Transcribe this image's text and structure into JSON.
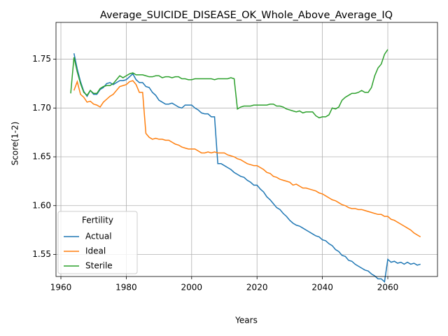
{
  "chart_data": {
    "type": "line",
    "title": "Average_SUICIDE_DISEASE_OK_Whole_Above_Average_IQ",
    "x_label": "Years",
    "y_label": "Score(1-2)",
    "legend_title": "Fertility",
    "legend_position": "lower left",
    "grid": true,
    "xlim": [
      1958.5,
      2075.2
    ],
    "ylim": [
      1.5274,
      1.7877
    ],
    "xticks": [
      1960,
      1980,
      2000,
      2020,
      2040,
      2060
    ],
    "yticks": [
      1.55,
      {
        "value": 1.6,
        "label": "1.60"
      },
      1.65,
      {
        "value": 1.7,
        "label": "1.70"
      },
      1.75
    ],
    "x": [
      1963,
      1964,
      1965,
      1966,
      1967,
      1968,
      1969,
      1970,
      1971,
      1972,
      1973,
      1974,
      1975,
      1976,
      1977,
      1978,
      1979,
      1980,
      1981,
      1982,
      1983,
      1984,
      1985,
      1986,
      1987,
      1988,
      1989,
      1990,
      1991,
      1992,
      1993,
      1994,
      1995,
      1996,
      1997,
      1998,
      1999,
      2000,
      2001,
      2002,
      2003,
      2004,
      2005,
      2006,
      2007,
      2008,
      2009,
      2010,
      2011,
      2012,
      2013,
      2014,
      2015,
      2016,
      2017,
      2018,
      2019,
      2020,
      2021,
      2022,
      2023,
      2024,
      2025,
      2026,
      2027,
      2028,
      2029,
      2030,
      2031,
      2032,
      2033,
      2034,
      2035,
      2036,
      2037,
      2038,
      2039,
      2040,
      2041,
      2042,
      2043,
      2044,
      2045,
      2046,
      2047,
      2048,
      2049,
      2050,
      2051,
      2052,
      2053,
      2054,
      2055,
      2056,
      2057,
      2058,
      2059,
      2060,
      2061,
      2062,
      2063,
      2064,
      2065,
      2066,
      2067,
      2068,
      2069,
      2070
    ],
    "series": [
      {
        "name": "Actual",
        "color": "#1f77b4",
        "values": [
          null,
          1.756,
          1.74,
          1.727,
          1.717,
          1.712,
          1.718,
          1.714,
          1.714,
          1.719,
          1.721,
          1.725,
          1.726,
          1.724,
          1.726,
          1.728,
          1.728,
          1.729,
          1.732,
          1.735,
          1.729,
          1.726,
          1.726,
          1.722,
          1.721,
          1.716,
          1.713,
          1.708,
          1.706,
          1.704,
          1.704,
          1.705,
          1.703,
          1.701,
          1.7,
          1.703,
          1.703,
          1.703,
          1.7,
          1.698,
          1.695,
          1.694,
          1.694,
          1.691,
          1.691,
          1.643,
          1.643,
          1.641,
          1.639,
          1.637,
          1.634,
          1.632,
          1.63,
          1.629,
          1.626,
          1.624,
          1.621,
          1.621,
          1.617,
          1.614,
          1.609,
          1.606,
          1.602,
          1.598,
          1.596,
          1.592,
          1.589,
          1.585,
          1.582,
          1.58,
          1.579,
          1.577,
          1.575,
          1.573,
          1.571,
          1.569,
          1.568,
          1.565,
          1.564,
          1.561,
          1.559,
          1.555,
          1.553,
          1.549,
          1.548,
          1.544,
          1.543,
          1.54,
          1.538,
          1.536,
          1.534,
          1.533,
          1.53,
          1.528,
          1.525,
          1.525,
          1.522,
          1.545,
          1.542,
          1.543,
          1.541,
          1.542,
          1.54,
          1.542,
          1.54,
          1.541,
          1.539,
          1.54
        ]
      },
      {
        "name": "Ideal",
        "color": "#ff7f0e",
        "values": [
          null,
          1.718,
          1.727,
          1.714,
          1.711,
          1.706,
          1.707,
          1.704,
          1.703,
          1.701,
          1.706,
          1.709,
          1.712,
          1.714,
          1.718,
          1.722,
          1.723,
          1.724,
          1.727,
          1.728,
          1.724,
          1.716,
          1.716,
          1.674,
          1.67,
          1.668,
          1.669,
          1.668,
          1.668,
          1.667,
          1.667,
          1.665,
          1.663,
          1.662,
          1.66,
          1.659,
          1.658,
          1.658,
          1.658,
          1.656,
          1.654,
          1.654,
          1.655,
          1.654,
          1.655,
          1.654,
          1.654,
          1.654,
          1.652,
          1.651,
          1.65,
          1.648,
          1.647,
          1.645,
          1.643,
          1.642,
          1.641,
          1.641,
          1.639,
          1.637,
          1.634,
          1.633,
          1.63,
          1.629,
          1.627,
          1.626,
          1.625,
          1.624,
          1.621,
          1.622,
          1.62,
          1.618,
          1.618,
          1.617,
          1.616,
          1.615,
          1.613,
          1.612,
          1.61,
          1.608,
          1.606,
          1.605,
          1.603,
          1.601,
          1.6,
          1.598,
          1.597,
          1.597,
          1.596,
          1.596,
          1.595,
          1.594,
          1.593,
          1.592,
          1.591,
          1.591,
          1.589,
          1.589,
          1.586,
          1.585,
          1.583,
          1.581,
          1.579,
          1.577,
          1.575,
          1.572,
          1.57,
          1.568
        ]
      },
      {
        "name": "Sterile",
        "color": "#2ca02c",
        "values": [
          1.715,
          1.752,
          1.737,
          1.725,
          1.716,
          1.713,
          1.718,
          1.715,
          1.715,
          1.72,
          1.722,
          1.723,
          1.723,
          1.725,
          1.729,
          1.733,
          1.731,
          1.733,
          1.735,
          1.736,
          1.734,
          1.734,
          1.734,
          1.733,
          1.732,
          1.732,
          1.733,
          1.733,
          1.731,
          1.732,
          1.732,
          1.731,
          1.732,
          1.732,
          1.73,
          1.73,
          1.729,
          1.729,
          1.73,
          1.73,
          1.73,
          1.73,
          1.73,
          1.73,
          1.729,
          1.73,
          1.73,
          1.73,
          1.73,
          1.731,
          1.73,
          1.699,
          1.701,
          1.702,
          1.702,
          1.702,
          1.703,
          1.703,
          1.703,
          1.703,
          1.703,
          1.704,
          1.704,
          1.702,
          1.702,
          1.701,
          1.699,
          1.698,
          1.697,
          1.696,
          1.697,
          1.695,
          1.696,
          1.696,
          1.696,
          1.692,
          1.69,
          1.691,
          1.691,
          1.693,
          1.7,
          1.699,
          1.701,
          1.708,
          1.711,
          1.713,
          1.715,
          1.715,
          1.716,
          1.718,
          1.716,
          1.716,
          1.721,
          1.733,
          1.741,
          1.745,
          1.755,
          1.76,
          null,
          null,
          null,
          null,
          null,
          null,
          null,
          null,
          null,
          null
        ]
      }
    ]
  }
}
